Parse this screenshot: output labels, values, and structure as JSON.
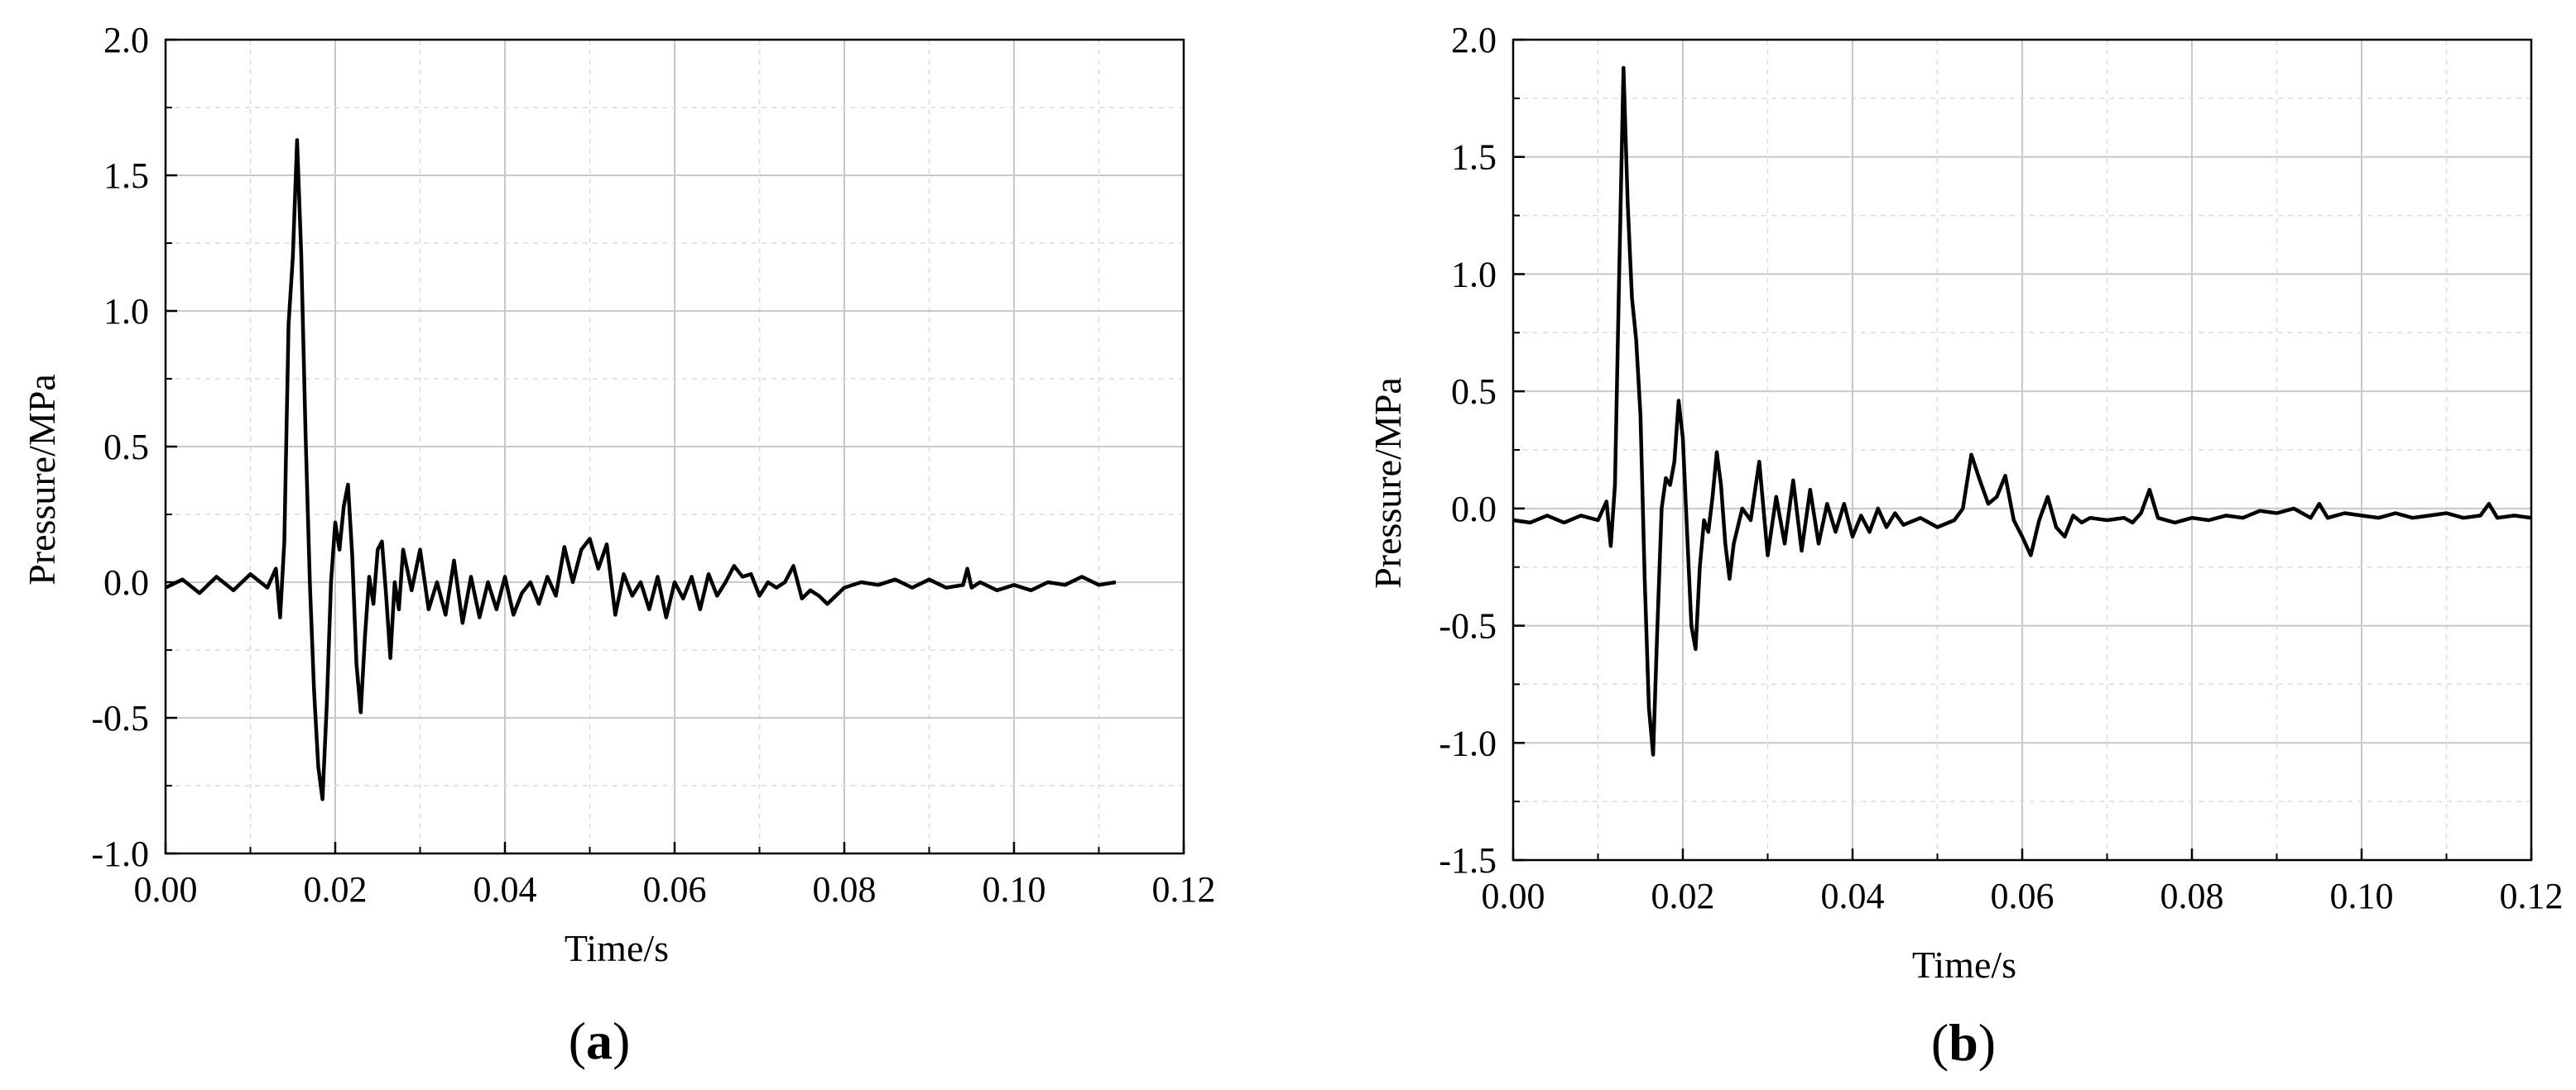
{
  "chart_data": [
    {
      "type": "line",
      "panel_label": "a",
      "xlabel": "Time/s",
      "ylabel": "Pressure/MPa",
      "xlim": [
        0,
        0.12
      ],
      "ylim": [
        -1.0,
        2.0
      ],
      "xticks": [
        "0.00",
        "0.02",
        "0.04",
        "0.06",
        "0.08",
        "0.10",
        "0.12"
      ],
      "yticks": [
        "-1.0",
        "-0.5",
        "0.0",
        "0.5",
        "1.0",
        "1.5",
        "2.0"
      ],
      "grid": true,
      "x": [
        0.0,
        0.002,
        0.004,
        0.006,
        0.008,
        0.01,
        0.012,
        0.013,
        0.0135,
        0.014,
        0.0145,
        0.015,
        0.0155,
        0.016,
        0.0165,
        0.017,
        0.0175,
        0.018,
        0.0185,
        0.019,
        0.0195,
        0.02,
        0.0205,
        0.021,
        0.0215,
        0.022,
        0.0225,
        0.023,
        0.0235,
        0.024,
        0.0245,
        0.025,
        0.0255,
        0.026,
        0.0265,
        0.027,
        0.0275,
        0.028,
        0.029,
        0.03,
        0.031,
        0.032,
        0.033,
        0.034,
        0.035,
        0.036,
        0.037,
        0.038,
        0.039,
        0.04,
        0.041,
        0.042,
        0.043,
        0.044,
        0.045,
        0.046,
        0.047,
        0.048,
        0.049,
        0.05,
        0.051,
        0.052,
        0.053,
        0.054,
        0.055,
        0.056,
        0.057,
        0.058,
        0.059,
        0.06,
        0.061,
        0.062,
        0.063,
        0.064,
        0.065,
        0.066,
        0.067,
        0.068,
        0.069,
        0.07,
        0.071,
        0.072,
        0.073,
        0.074,
        0.075,
        0.076,
        0.077,
        0.078,
        0.08,
        0.082,
        0.084,
        0.086,
        0.088,
        0.09,
        0.092,
        0.094,
        0.0945,
        0.095,
        0.096,
        0.098,
        0.1,
        0.102,
        0.104,
        0.106,
        0.108,
        0.11,
        0.112
      ],
      "y": [
        -0.02,
        0.01,
        -0.04,
        0.02,
        -0.03,
        0.03,
        -0.02,
        0.05,
        -0.13,
        0.15,
        0.95,
        1.2,
        1.63,
        1.2,
        0.55,
        0.0,
        -0.4,
        -0.68,
        -0.8,
        -0.45,
        0.0,
        0.22,
        0.12,
        0.28,
        0.36,
        0.1,
        -0.3,
        -0.48,
        -0.2,
        0.02,
        -0.08,
        0.12,
        0.15,
        -0.05,
        -0.28,
        0.0,
        -0.1,
        0.12,
        -0.03,
        0.12,
        -0.1,
        0.0,
        -0.12,
        0.08,
        -0.15,
        0.02,
        -0.13,
        0.0,
        -0.1,
        0.02,
        -0.12,
        -0.04,
        0.0,
        -0.08,
        0.02,
        -0.05,
        0.13,
        0.0,
        0.12,
        0.16,
        0.05,
        0.14,
        -0.12,
        0.03,
        -0.05,
        0.0,
        -0.1,
        0.02,
        -0.13,
        0.0,
        -0.06,
        0.02,
        -0.1,
        0.03,
        -0.05,
        0.0,
        0.06,
        0.02,
        0.03,
        -0.05,
        0.0,
        -0.02,
        0.0,
        0.06,
        -0.06,
        -0.03,
        -0.05,
        -0.08,
        -0.02,
        0.0,
        -0.01,
        0.01,
        -0.02,
        0.01,
        -0.02,
        -0.01,
        0.05,
        -0.02,
        0.0,
        -0.03,
        -0.01,
        -0.03,
        0.0,
        -0.01,
        0.02,
        -0.01,
        0.0
      ]
    },
    {
      "type": "line",
      "panel_label": "b",
      "xlabel": "Time/s",
      "ylabel": "Pressure/MPa",
      "xlim": [
        0,
        0.12
      ],
      "ylim": [
        -1.5,
        2.0
      ],
      "xticks": [
        "0.00",
        "0.02",
        "0.04",
        "0.06",
        "0.08",
        "0.10",
        "0.12"
      ],
      "yticks": [
        "-1.5",
        "-1.0",
        "-0.5",
        "0.0",
        "0.5",
        "1.0",
        "1.5",
        "2.0"
      ],
      "grid": true,
      "x": [
        0.0,
        0.002,
        0.004,
        0.006,
        0.008,
        0.01,
        0.011,
        0.0115,
        0.012,
        0.0125,
        0.013,
        0.0135,
        0.014,
        0.0145,
        0.015,
        0.0155,
        0.016,
        0.0165,
        0.017,
        0.0175,
        0.018,
        0.0185,
        0.019,
        0.0195,
        0.02,
        0.0205,
        0.021,
        0.0215,
        0.022,
        0.0225,
        0.023,
        0.0235,
        0.024,
        0.0245,
        0.025,
        0.0255,
        0.026,
        0.027,
        0.028,
        0.029,
        0.03,
        0.031,
        0.032,
        0.033,
        0.034,
        0.035,
        0.036,
        0.037,
        0.038,
        0.039,
        0.04,
        0.041,
        0.042,
        0.043,
        0.044,
        0.045,
        0.046,
        0.048,
        0.05,
        0.052,
        0.053,
        0.054,
        0.055,
        0.056,
        0.057,
        0.058,
        0.059,
        0.06,
        0.061,
        0.062,
        0.063,
        0.064,
        0.065,
        0.066,
        0.067,
        0.068,
        0.07,
        0.072,
        0.073,
        0.074,
        0.075,
        0.076,
        0.078,
        0.08,
        0.082,
        0.084,
        0.086,
        0.088,
        0.09,
        0.092,
        0.094,
        0.095,
        0.096,
        0.098,
        0.1,
        0.102,
        0.104,
        0.106,
        0.108,
        0.11,
        0.112,
        0.114,
        0.115,
        0.116,
        0.118,
        0.12
      ],
      "y": [
        -0.05,
        -0.06,
        -0.03,
        -0.06,
        -0.03,
        -0.05,
        0.03,
        -0.16,
        0.1,
        1.0,
        1.88,
        1.3,
        0.9,
        0.72,
        0.4,
        -0.3,
        -0.85,
        -1.05,
        -0.5,
        0.0,
        0.13,
        0.1,
        0.2,
        0.46,
        0.3,
        -0.1,
        -0.5,
        -0.6,
        -0.25,
        -0.05,
        -0.1,
        0.05,
        0.24,
        0.1,
        -0.15,
        -0.3,
        -0.15,
        0.0,
        -0.05,
        0.2,
        -0.2,
        0.05,
        -0.15,
        0.12,
        -0.18,
        0.08,
        -0.15,
        0.02,
        -0.1,
        0.02,
        -0.12,
        -0.03,
        -0.1,
        0.0,
        -0.08,
        -0.02,
        -0.07,
        -0.04,
        -0.08,
        -0.05,
        0.0,
        0.23,
        0.12,
        0.02,
        0.05,
        0.14,
        -0.05,
        -0.12,
        -0.2,
        -0.05,
        0.05,
        -0.08,
        -0.12,
        -0.03,
        -0.06,
        -0.04,
        -0.05,
        -0.04,
        -0.06,
        -0.02,
        0.08,
        -0.04,
        -0.06,
        -0.04,
        -0.05,
        -0.03,
        -0.04,
        -0.01,
        -0.02,
        0.0,
        -0.04,
        0.02,
        -0.04,
        -0.02,
        -0.03,
        -0.04,
        -0.02,
        -0.04,
        -0.03,
        -0.02,
        -0.04,
        -0.03,
        0.02,
        -0.04,
        -0.03,
        -0.04
      ]
    }
  ]
}
